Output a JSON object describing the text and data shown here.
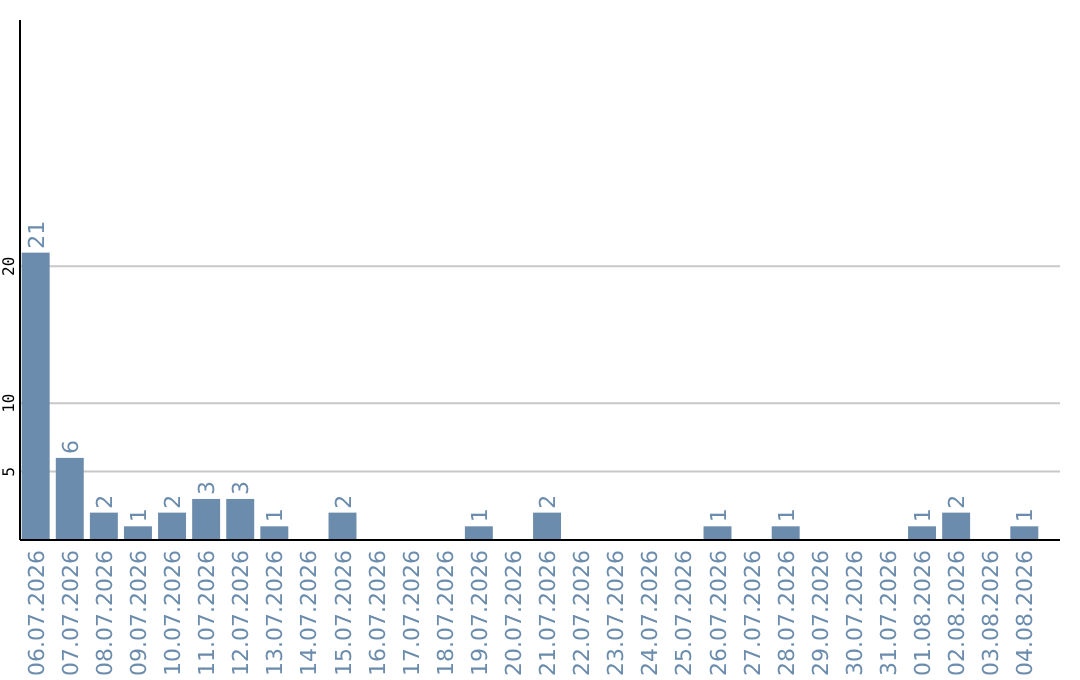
{
  "chart_data": {
    "type": "bar",
    "categories": [
      "06.07.2026",
      "07.07.2026",
      "08.07.2026",
      "09.07.2026",
      "10.07.2026",
      "11.07.2026",
      "12.07.2026",
      "13.07.2026",
      "14.07.2026",
      "15.07.2026",
      "16.07.2026",
      "17.07.2026",
      "18.07.2026",
      "19.07.2026",
      "20.07.2026",
      "21.07.2026",
      "22.07.2026",
      "23.07.2026",
      "24.07.2026",
      "25.07.2026",
      "26.07.2026",
      "27.07.2026",
      "28.07.2026",
      "29.07.2026",
      "30.07.2026",
      "31.07.2026",
      "01.08.2026",
      "02.08.2026",
      "03.08.2026",
      "04.08.2026"
    ],
    "values": [
      21,
      6,
      2,
      1,
      2,
      3,
      3,
      1,
      null,
      2,
      null,
      null,
      null,
      1,
      null,
      2,
      null,
      null,
      null,
      null,
      1,
      null,
      1,
      null,
      null,
      null,
      1,
      2,
      null,
      1
    ],
    "color": "#6b8cac",
    "ylim": [
      0,
      38
    ],
    "yticks": [
      5,
      10,
      20
    ],
    "grid": "y",
    "data_labels": true
  }
}
